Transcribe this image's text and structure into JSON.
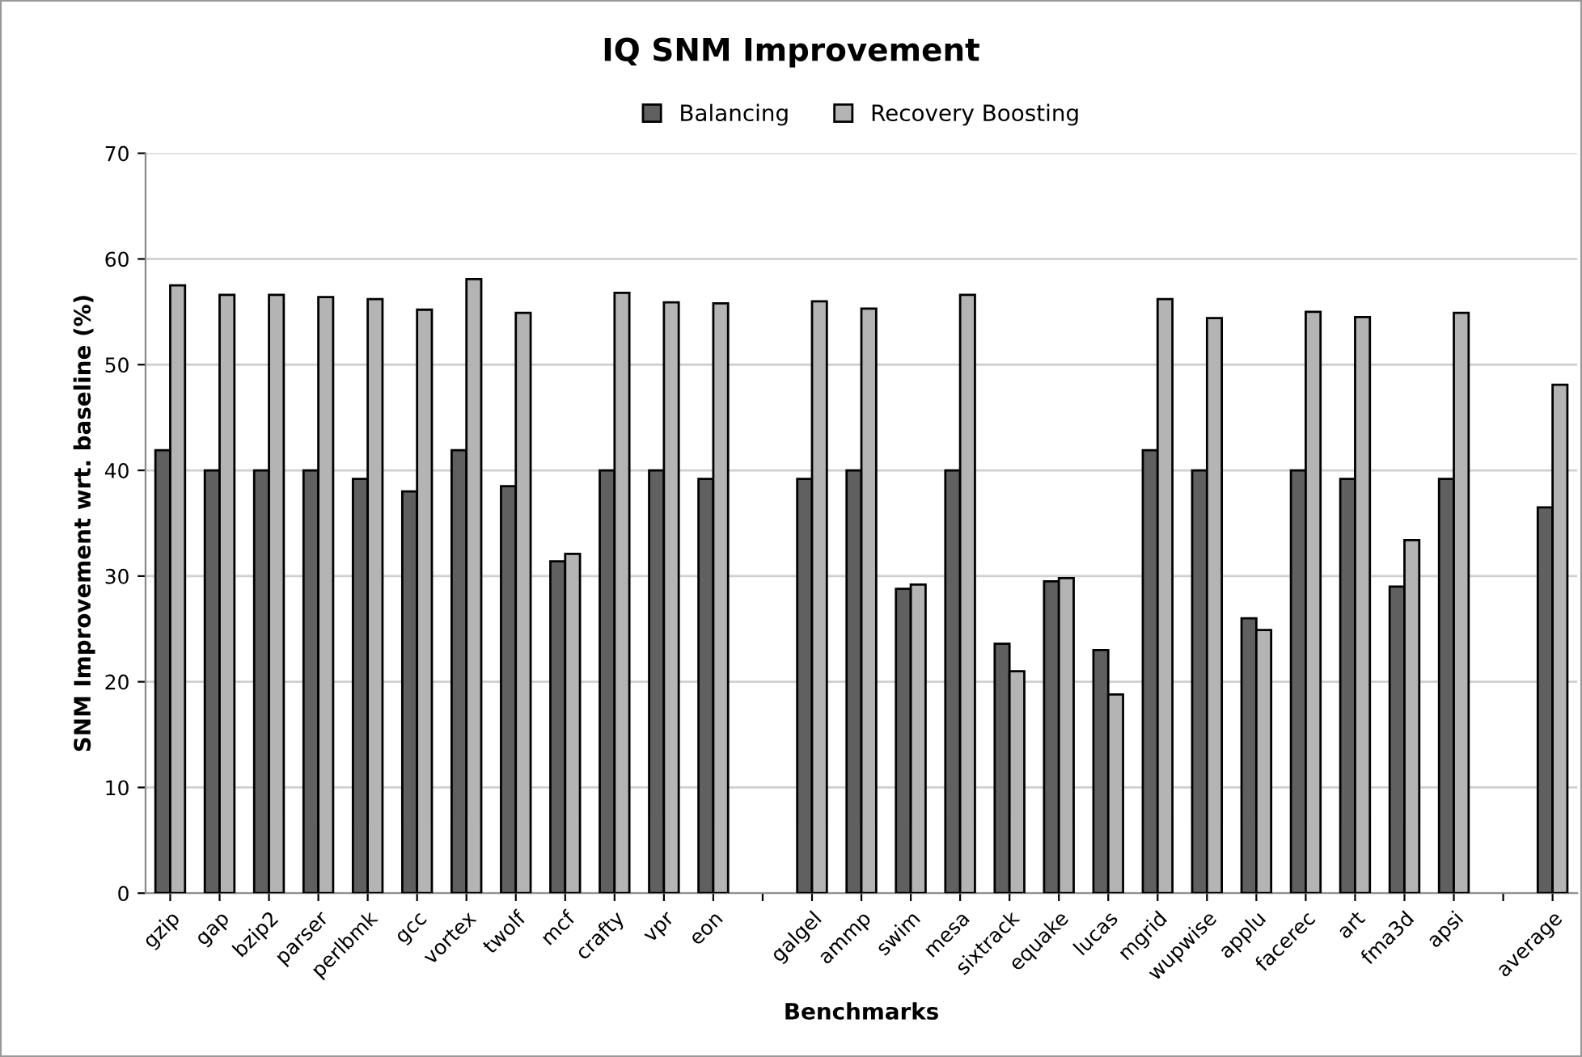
{
  "chart_data": {
    "type": "bar",
    "title": "IQ SNM Improvement",
    "xlabel": "Benchmarks",
    "ylabel": "SNM Improvement wrt. baseline (%)",
    "categories": [
      "gzip",
      "gap",
      "bzip2",
      "parser",
      "perlbmk",
      "gcc",
      "vortex",
      "twolf",
      "mcf",
      "crafty",
      "vpr",
      "eon",
      null,
      "galgel",
      "ammp",
      "swim",
      "mesa",
      "sixtrack",
      "equake",
      "lucas",
      "mgrid",
      "wupwise",
      "applu",
      "facerec",
      "art",
      "fma3d",
      "apsi",
      null,
      "average"
    ],
    "series": [
      {
        "name": "Balancing",
        "color": "#606060",
        "values": [
          41.9,
          40,
          40,
          40,
          39.2,
          38.0,
          41.9,
          38.5,
          31.4,
          40,
          40,
          39.2,
          null,
          39.2,
          40,
          28.8,
          40,
          23.6,
          29.5,
          23.0,
          41.9,
          40,
          26.0,
          40,
          39.2,
          29.0,
          39.2,
          null,
          36.5
        ]
      },
      {
        "name": "Recovery Boosting",
        "color": "#b4b4b4",
        "values": [
          57.5,
          56.6,
          56.6,
          56.4,
          56.2,
          55.2,
          58.1,
          54.9,
          32.1,
          56.8,
          55.9,
          55.8,
          null,
          56.0,
          55.3,
          29.2,
          56.6,
          21.0,
          29.8,
          18.8,
          56.2,
          54.4,
          24.9,
          55.0,
          54.5,
          33.4,
          54.9,
          null,
          48.1
        ]
      }
    ],
    "ylim": [
      0,
      70
    ],
    "yticks": [
      0,
      10,
      20,
      30,
      40,
      50,
      60,
      70
    ],
    "grid": "y",
    "legend": "top"
  }
}
